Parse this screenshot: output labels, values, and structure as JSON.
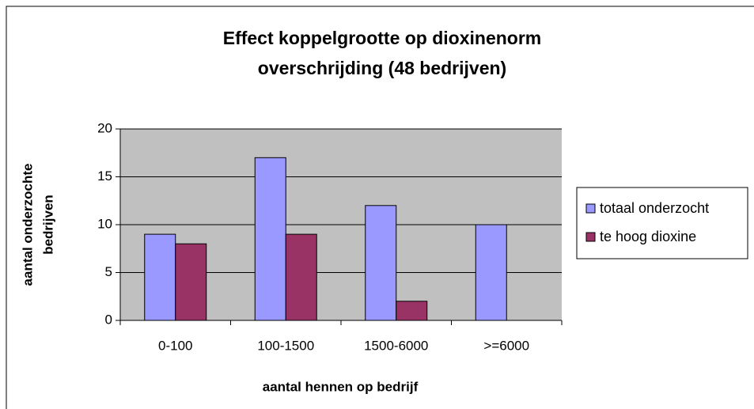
{
  "chart_data": {
    "type": "bar",
    "title": [
      "Effect koppelgrootte op dioxinenorm",
      "overschrijding (48 bedrijven)"
    ],
    "x_label": "aantal hennen op bedrijf",
    "y_label": [
      "aantal onderzochte",
      "bedrijven"
    ],
    "categories": [
      "0-100",
      "100-1500",
      "1500-6000",
      ">=6000"
    ],
    "series": [
      {
        "name": "totaal onderzocht",
        "color": "#9999ff",
        "values": [
          9,
          17,
          12,
          10
        ]
      },
      {
        "name": "te hoog dioxine",
        "color": "#993366",
        "values": [
          8,
          9,
          2,
          0
        ]
      }
    ],
    "ylim": [
      0,
      20
    ],
    "yticks": [
      0,
      5,
      10,
      15,
      20
    ],
    "grid": true,
    "legend": "right"
  }
}
